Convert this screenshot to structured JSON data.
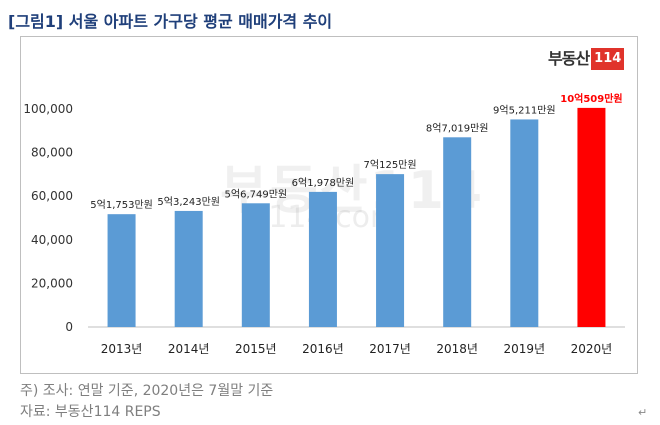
{
  "title": "[그림1] 서울 아파트 가구당 평균 매매가격 추이",
  "logo": {
    "text": "부동산",
    "number": "114"
  },
  "watermark": {
    "text": "부동산114",
    "url": "r114.com"
  },
  "colors": {
    "bar": "#5b9bd5",
    "highlight": "#ff0000",
    "title": "#1f3f7a"
  },
  "notes": {
    "line1": "주) 조사: 연말 기준, 2020년은 7월말 기준",
    "line2": "자료: 부동산114 REPS"
  },
  "para_mark": "↵",
  "chart_data": {
    "type": "bar",
    "title": "서울 아파트 가구당 평균 매매가격 추이",
    "xlabel": "",
    "ylabel": "",
    "ylim": [
      0,
      100000
    ],
    "yticks": [
      0,
      20000,
      40000,
      60000,
      80000,
      100000
    ],
    "ytick_labels": [
      "0",
      "20,000",
      "40,000",
      "60,000",
      "80,000",
      "100,000"
    ],
    "categories": [
      "2013년",
      "2014년",
      "2015년",
      "2016년",
      "2017년",
      "2018년",
      "2019년",
      "2020년"
    ],
    "values": [
      51753,
      53243,
      56749,
      61978,
      70125,
      87019,
      95211,
      100509
    ],
    "data_labels": [
      "5억1,753만원",
      "5억3,243만원",
      "5억6,749만원",
      "6억1,978만원",
      "7억125만원",
      "8억7,019만원",
      "9억5,211만원",
      "10억509만원"
    ],
    "highlight_index": 7,
    "grid": false,
    "legend": "none"
  }
}
